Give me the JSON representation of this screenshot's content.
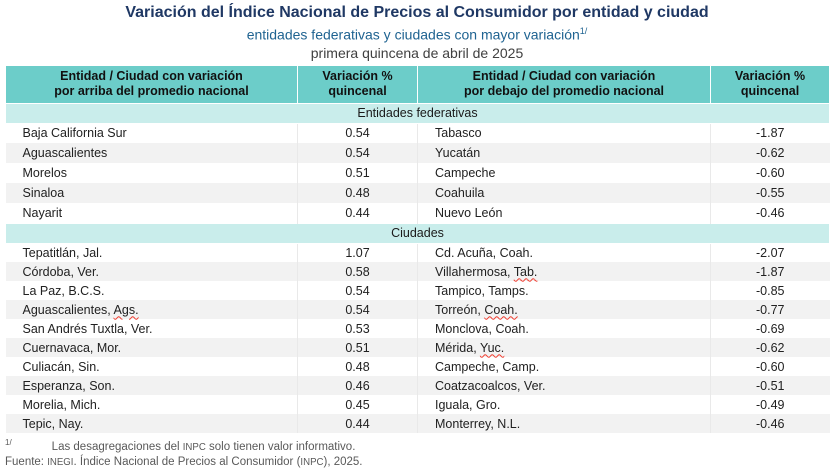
{
  "title": "Variación del Índice Nacional de Precios al Consumidor por entidad y ciudad",
  "subtitle": {
    "text": "entidades federativas y ciudades con mayor variación",
    "marker": "1/"
  },
  "period": "primera quincena de abril de 2025",
  "colors": {
    "header_teal": "#6CCDC9",
    "section_teal": "#C9EDEB",
    "row_alt_gray": "#F2F2F2",
    "title_navy": "#1F3864",
    "subtitle_blue": "#1F6391",
    "squiggle_red": "#f03a2d"
  },
  "table": {
    "headers": [
      {
        "line1": "Entidad / Ciudad con variación",
        "line2": "por arriba del promedio nacional"
      },
      {
        "line1": "Variación %",
        "line2": "quincenal"
      },
      {
        "line1": "Entidad / Ciudad con variación",
        "line2": "por debajo del promedio nacional"
      },
      {
        "line1": "Variación %",
        "line2": "quincenal"
      }
    ],
    "sections": [
      {
        "label": "Entidades federativas",
        "rows": [
          {
            "left": "Baja California Sur",
            "left_val": "0.54",
            "right": "Tabasco",
            "right_val": "-1.87"
          },
          {
            "left": "Aguascalientes",
            "left_val": "0.54",
            "right": "Yucatán",
            "right_val": "-0.62"
          },
          {
            "left": "Morelos",
            "left_val": "0.51",
            "right": "Campeche",
            "right_val": "-0.60"
          },
          {
            "left": "Sinaloa",
            "left_val": "0.48",
            "right": "Coahuila",
            "right_val": "-0.55"
          },
          {
            "left": "Nayarit",
            "left_val": "0.44",
            "right": "Nuevo León",
            "right_val": "-0.46"
          }
        ]
      },
      {
        "label": "Ciudades",
        "rows": [
          {
            "left": "Tepatitlán, Jal.",
            "left_val": "1.07",
            "right": "Cd. Acuña, Coah.",
            "right_val": "-2.07"
          },
          {
            "left": "Córdoba, Ver.",
            "left_val": "0.58",
            "right": "Villahermosa, Tab.",
            "right_flag": "Tab.",
            "right_val": "-1.87"
          },
          {
            "left": "La Paz, B.C.S.",
            "left_val": "0.54",
            "right": "Tampico, Tamps.",
            "right_val": "-0.85"
          },
          {
            "left": "Aguascalientes, Ags.",
            "left_flag": "Ags.",
            "left_val": "0.54",
            "right": "Torreón, Coah.",
            "right_flag": "Coah.",
            "right_val": "-0.77"
          },
          {
            "left": "San Andrés Tuxtla, Ver.",
            "left_val": "0.53",
            "right": "Monclova, Coah.",
            "right_val": "-0.69"
          },
          {
            "left": "Cuernavaca, Mor.",
            "left_val": "0.51",
            "right": "Mérida, Yuc.",
            "right_flag": "Yuc.",
            "right_val": "-0.62"
          },
          {
            "left": "Culiacán, Sin.",
            "left_val": "0.48",
            "right": "Campeche, Camp.",
            "right_val": "-0.60"
          },
          {
            "left": "Esperanza, Son.",
            "left_val": "0.46",
            "right": "Coatzacoalcos, Ver.",
            "right_val": "-0.51"
          },
          {
            "left": "Morelia, Mich.",
            "left_val": "0.45",
            "right": "Iguala, Gro.",
            "right_val": "-0.49"
          },
          {
            "left": "Tepic, Nay.",
            "left_val": "0.44",
            "right": "Monterrey, N.L.",
            "right_val": "-0.46"
          }
        ]
      }
    ]
  },
  "footnotes": {
    "marker": "1/",
    "note_parts": [
      "Las desagregaciones del ",
      "INPC",
      " solo tienen valor informativo."
    ],
    "source_parts": [
      "Fuente: ",
      "INEGI",
      ". Índice Nacional de Precios al Consumidor (",
      "INPC",
      "), 2025."
    ]
  }
}
